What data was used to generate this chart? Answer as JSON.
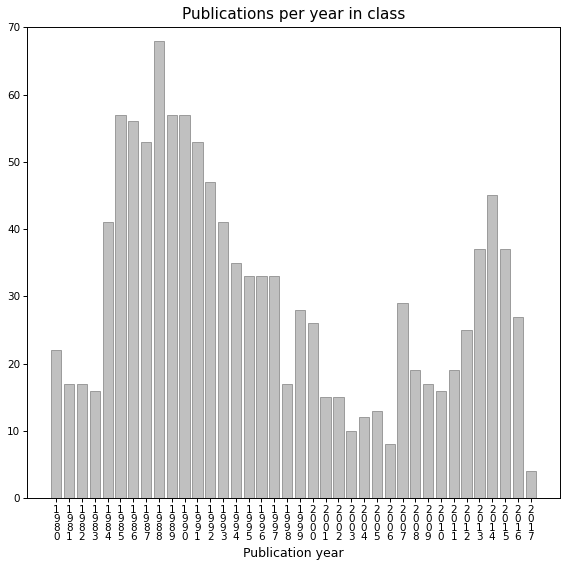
{
  "years_labels": [
    "1\n9\n8\n0",
    "1\n9\n8\n1",
    "1\n9\n8\n2",
    "1\n9\n8\n3",
    "1\n9\n8\n4",
    "1\n9\n8\n5",
    "1\n9\n8\n6",
    "1\n9\n8\n7",
    "1\n9\n8\n8",
    "1\n9\n8\n9",
    "1\n9\n9\n0",
    "1\n9\n9\n1",
    "1\n9\n9\n2",
    "1\n9\n9\n3",
    "1\n9\n9\n4",
    "1\n9\n9\n5",
    "1\n9\n9\n6",
    "1\n9\n9\n7",
    "1\n9\n9\n8",
    "1\n9\n9\n9",
    "2\n0\n0\n0",
    "2\n0\n0\n1",
    "2\n0\n0\n2",
    "2\n0\n0\n3",
    "2\n0\n0\n4",
    "2\n0\n0\n5",
    "2\n0\n0\n6",
    "2\n0\n0\n7",
    "2\n0\n0\n8",
    "2\n0\n0\n9",
    "2\n0\n1\n0",
    "2\n0\n1\n1",
    "2\n0\n1\n2",
    "2\n0\n1\n3",
    "2\n0\n1\n4",
    "2\n0\n1\n5",
    "2\n0\n1\n6",
    "2\n0\n1\n7"
  ],
  "values": [
    22,
    17,
    17,
    16,
    41,
    57,
    56,
    53,
    68,
    57,
    57,
    53,
    47,
    41,
    35,
    33,
    33,
    33,
    17,
    28,
    26,
    15,
    15,
    10,
    12,
    13,
    8,
    29,
    19,
    17,
    16,
    19,
    25,
    37,
    45,
    37,
    27,
    4
  ],
  "bar_color": "#c0c0c0",
  "bar_edgecolor": "#808080",
  "title": "Publications per year in class",
  "xlabel": "Publication year",
  "ylim": [
    0,
    70
  ],
  "yticks": [
    0,
    10,
    20,
    30,
    40,
    50,
    60,
    70
  ],
  "title_fontsize": 11,
  "label_fontsize": 9,
  "tick_fontsize": 7.5,
  "annotation_fontsize": 9,
  "background_color": "#ffffff"
}
